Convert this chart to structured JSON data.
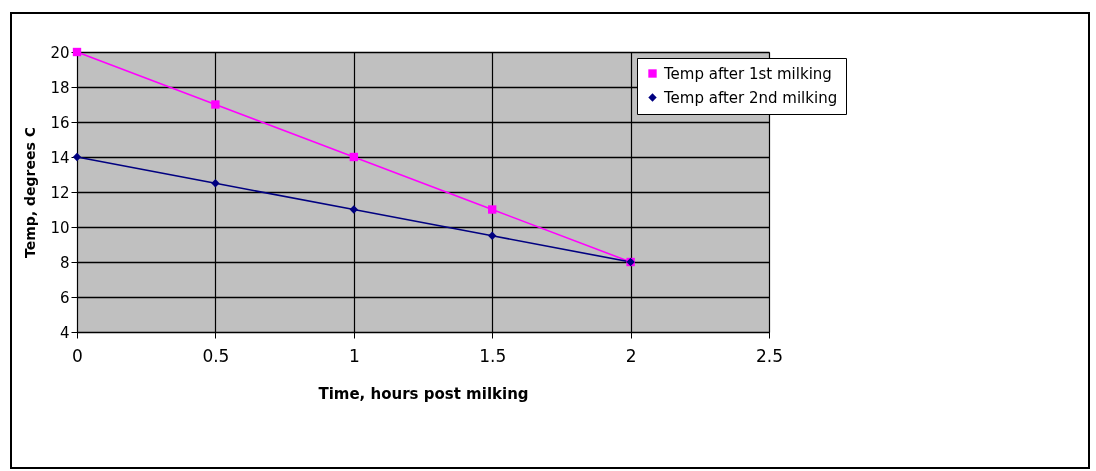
{
  "chart_data": {
    "type": "line",
    "xlabel": "Time, hours post milking",
    "ylabel": "Temp, degrees C",
    "x": [
      0,
      0.5,
      1,
      1.5,
      2
    ],
    "series": [
      {
        "name": "Temp after 1st milking",
        "color": "#ff00ff",
        "marker": "square",
        "values": [
          20,
          17,
          14,
          11,
          8
        ]
      },
      {
        "name": "Temp after 2nd milking",
        "color": "#000080",
        "marker": "diamond",
        "values": [
          14,
          12.5,
          11,
          9.5,
          8
        ]
      }
    ],
    "xlim": [
      0,
      2.5
    ],
    "xticks": [
      0,
      0.5,
      1,
      1.5,
      2,
      2.5
    ],
    "ylim": [
      4,
      20
    ],
    "yticks": [
      4,
      6,
      8,
      10,
      12,
      14,
      16,
      18,
      20
    ],
    "grid": true,
    "legend": "top right",
    "line_style": "solid"
  }
}
